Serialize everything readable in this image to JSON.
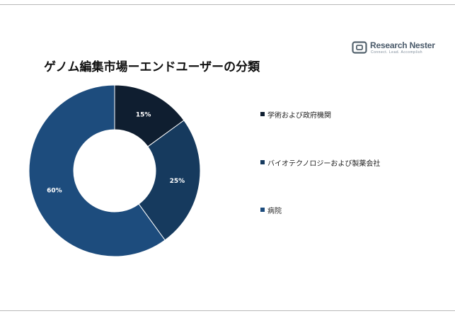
{
  "brand": {
    "name": "Research Nester",
    "tagline": "Connect. Lead. Accomplish"
  },
  "chart_data": {
    "type": "pie",
    "title": "ゲノム編集市場ーエンドユーザーの分類",
    "donut": true,
    "categories": [
      "学術および政府機関",
      "バイオテクノロジーおよび製薬会社",
      "病院"
    ],
    "values": [
      15,
      25,
      60
    ],
    "data_labels": [
      "15%",
      "25%",
      "60%"
    ],
    "colors": [
      "#0f1e30",
      "#163a5e",
      "#1d4c7d"
    ],
    "label_colors": [
      "#ffffff",
      "#ffffff",
      "#ffffff"
    ],
    "legend": "right",
    "start_angle_deg": 0
  }
}
